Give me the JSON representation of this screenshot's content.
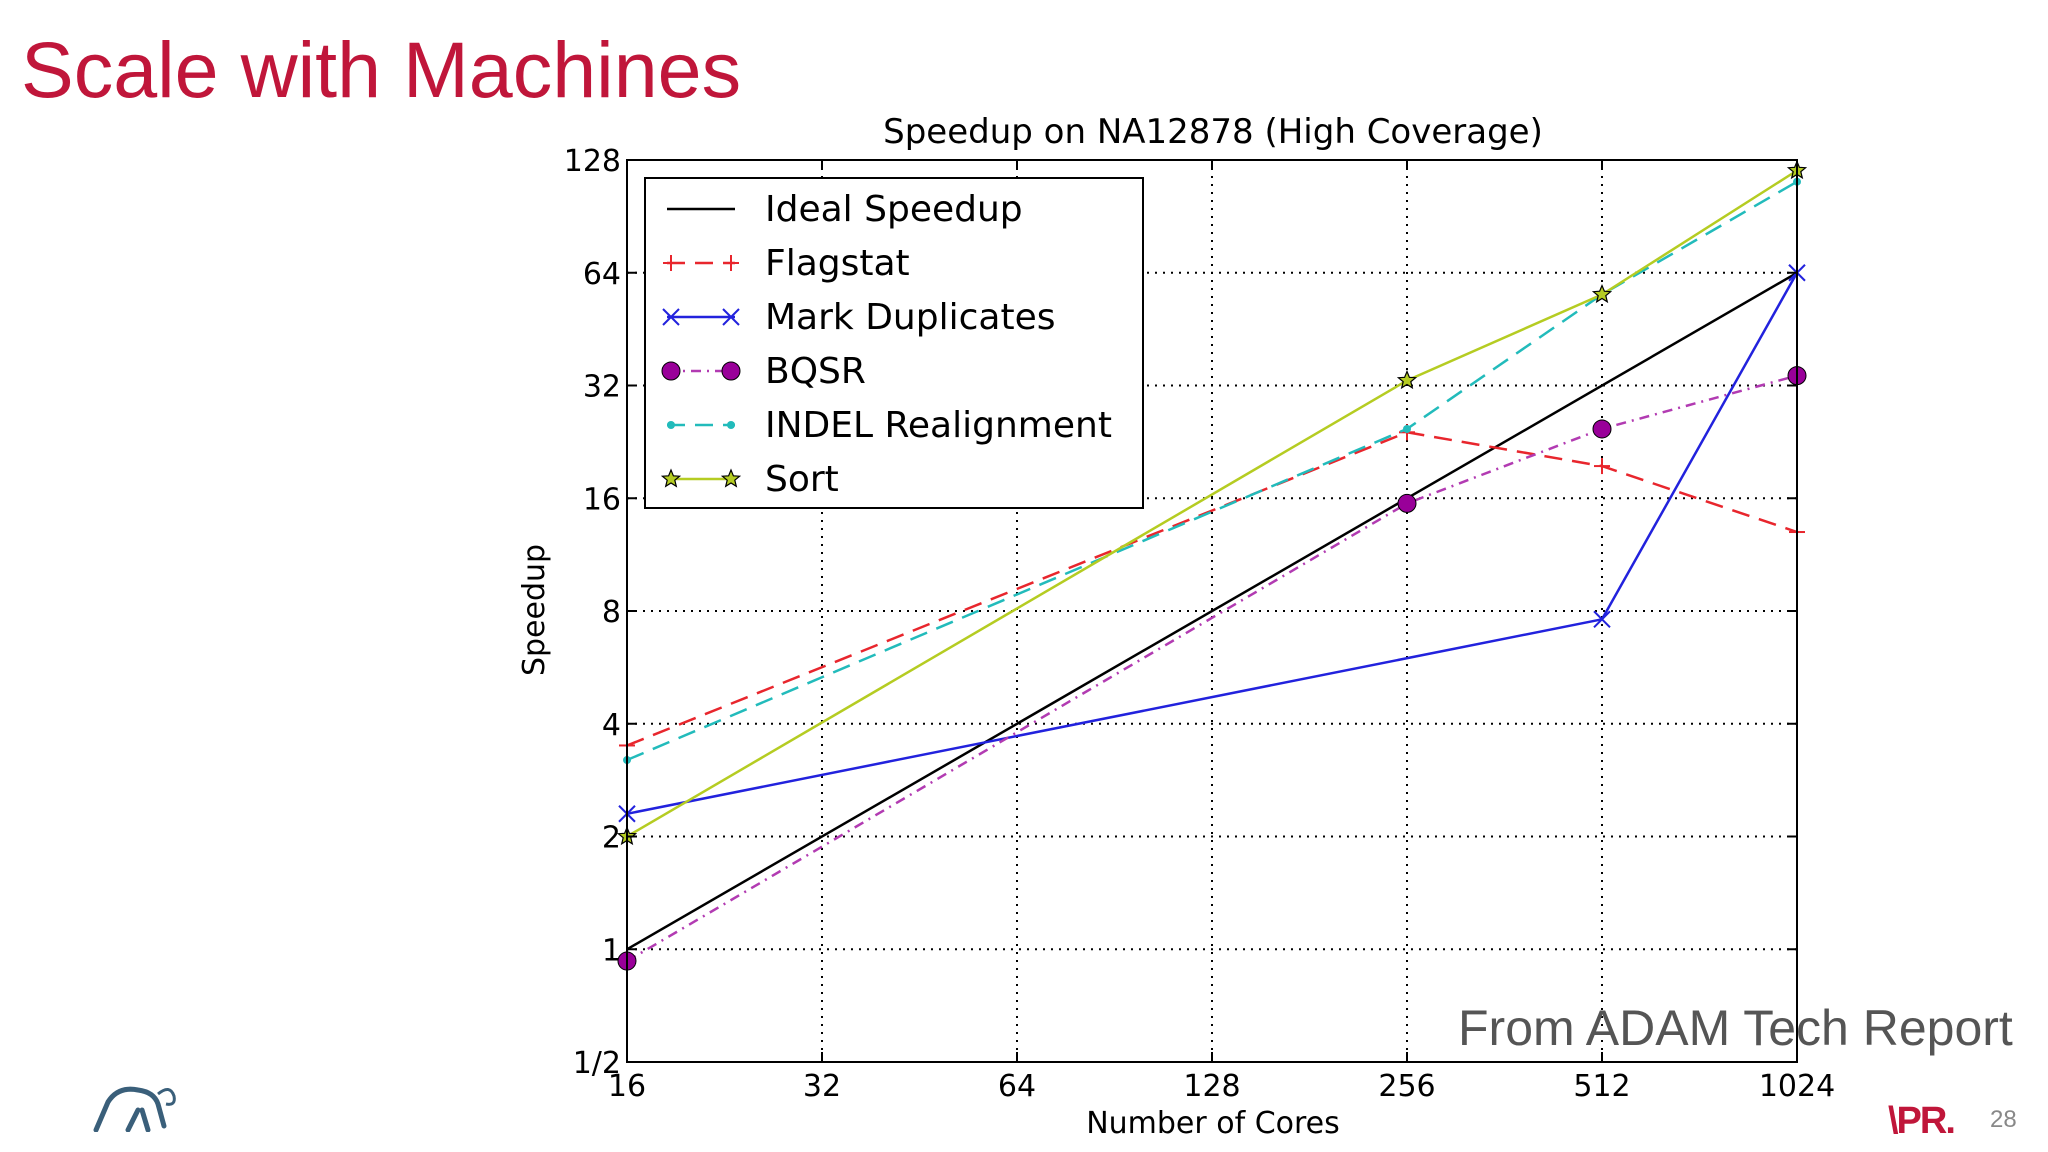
{
  "slide": {
    "title": "Scale with Machines",
    "source_note": "From ADAM Tech Report",
    "page_number": "28",
    "logo_text": "\\PR."
  },
  "colors": {
    "title": "#c0163a",
    "ideal": "#000000",
    "flagstat": "#e8262d",
    "markdup": "#2222dd",
    "bqsr": "#b23bb2",
    "indel": "#22bbbb",
    "sort": "#b5cc22"
  },
  "icons": {
    "left_logo": "elephant-logo-icon",
    "right_logo": "ampl-logo-icon"
  },
  "chart_data": {
    "type": "line",
    "title": "Speedup on NA12878 (High Coverage)",
    "xlabel": "Number of Cores",
    "ylabel": "Speedup",
    "x_scale": "log2",
    "y_scale": "log2",
    "xlim": [
      16,
      1024
    ],
    "ylim": [
      0.5,
      128
    ],
    "x_ticks": [
      16,
      32,
      64,
      128,
      256,
      512,
      1024
    ],
    "x_tick_labels": [
      "16",
      "32",
      "64",
      "128",
      "256",
      "512",
      "1024"
    ],
    "y_ticks": [
      0.5,
      1,
      2,
      4,
      8,
      16,
      32,
      64,
      128
    ],
    "y_tick_labels": [
      "1/2",
      "1",
      "2",
      "4",
      "8",
      "16",
      "32",
      "64",
      "128"
    ],
    "grid": true,
    "legend_position": "top-left",
    "series": [
      {
        "name": "Ideal Speedup",
        "key": "ideal",
        "dash": "solid",
        "marker": "none",
        "x": [
          16,
          1024
        ],
        "y": [
          1,
          64
        ]
      },
      {
        "name": "Flagstat",
        "key": "flagstat",
        "dash": "dashed",
        "marker": "plus",
        "x": [
          16,
          256,
          512,
          1024
        ],
        "y": [
          3.5,
          24,
          19.5,
          13
        ]
      },
      {
        "name": "Mark Duplicates",
        "key": "markdup",
        "dash": "solid",
        "marker": "x",
        "x": [
          16,
          512,
          1024
        ],
        "y": [
          2.3,
          7.6,
          64
        ]
      },
      {
        "name": "BQSR",
        "key": "bqsr",
        "dash": "dashdot",
        "marker": "circle",
        "x": [
          16,
          256,
          512,
          1024
        ],
        "y": [
          0.93,
          15.5,
          24.5,
          34
        ]
      },
      {
        "name": "INDEL Realignment",
        "key": "indel",
        "dash": "dashed",
        "marker": "dot",
        "x": [
          16,
          256,
          512,
          1024
        ],
        "y": [
          3.2,
          24.5,
          56,
          112
        ]
      },
      {
        "name": "Sort",
        "key": "sort",
        "dash": "solid",
        "marker": "star",
        "x": [
          16,
          256,
          512,
          1024
        ],
        "y": [
          2.0,
          33,
          56,
          120
        ]
      }
    ]
  }
}
